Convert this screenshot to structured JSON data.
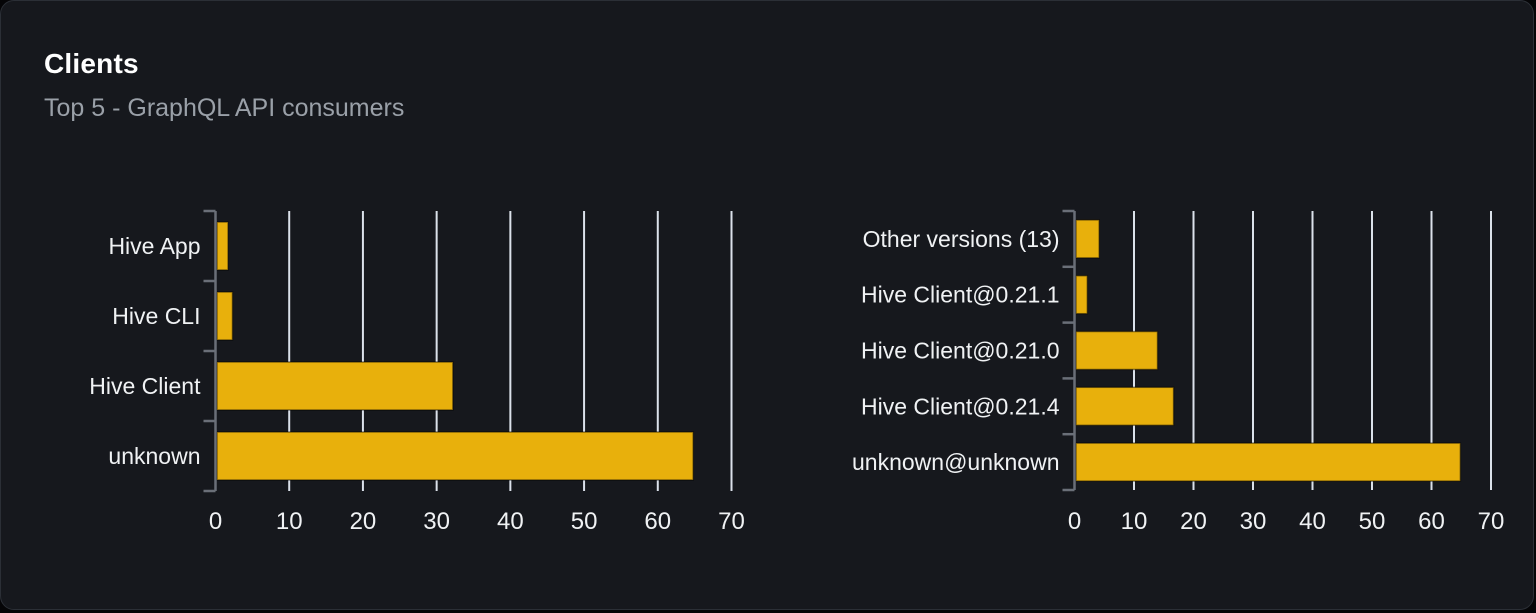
{
  "panel": {
    "title": "Clients",
    "subtitle": "Top 5 - GraphQL API consumers"
  },
  "colors": {
    "page_bg": "#050507",
    "card_bg": "#16181d",
    "card_border": "#2b2f36",
    "title_text": "#ffffff",
    "subtitle_text": "#9aa0a8",
    "bar_fill": "#e8b00c",
    "bar_border": "rgba(0,0,0,0.45)",
    "grid_line": "#dbe1ea",
    "axis_line": "#6a6f78",
    "category_text": "#f0f2f4",
    "tick_text": "#f0f2f4"
  },
  "chart_data": [
    {
      "type": "bar",
      "orientation": "horizontal",
      "title": "",
      "categories": [
        "Hive App",
        "Hive CLI",
        "Hive Client",
        "unknown"
      ],
      "values": [
        1.5,
        2.1,
        32,
        64.6
      ],
      "xlim": [
        0,
        70
      ],
      "xticks": [
        0,
        10,
        20,
        30,
        40,
        50,
        60,
        70
      ],
      "grid": true,
      "legend": false
    },
    {
      "type": "bar",
      "orientation": "horizontal",
      "title": "",
      "categories": [
        "Other versions (13)",
        "Hive Client@0.21.1",
        "Hive Client@0.21.0",
        "Hive Client@0.21.4",
        "unknown@unknown"
      ],
      "values": [
        3.9,
        1.9,
        13.7,
        16.4,
        64.6
      ],
      "xlim": [
        0,
        70
      ],
      "xticks": [
        0,
        10,
        20,
        30,
        40,
        50,
        60,
        70
      ],
      "grid": true,
      "legend": false
    }
  ]
}
